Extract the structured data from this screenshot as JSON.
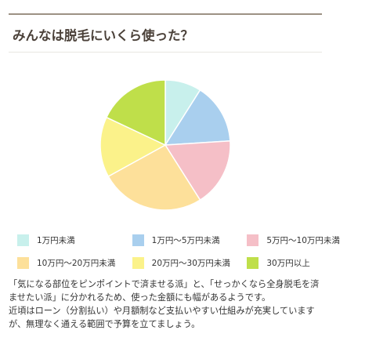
{
  "header": {
    "title": "みんなは脱毛にいくら使った？"
  },
  "chart_data": {
    "type": "pie",
    "title": "みんなは脱毛にいくら使った？",
    "slices": [
      {
        "label": "1万円未満",
        "value": 9,
        "color": "#c8f0ec"
      },
      {
        "label": "1万円〜5万円未満",
        "value": 15,
        "color": "#a9cfee"
      },
      {
        "label": "5万円〜10万円未満",
        "value": 17,
        "color": "#f5bfc7"
      },
      {
        "label": "10万円〜20万円未満",
        "value": 26,
        "color": "#fde09a"
      },
      {
        "label": "20万円〜30万円未満",
        "value": 15,
        "color": "#fbf28a"
      },
      {
        "label": "30万円以上",
        "value": 18,
        "color": "#bfdf4a"
      }
    ],
    "legend_position": "bottom"
  },
  "legend": {
    "items": [
      {
        "label": "1万円未満",
        "color": "#c8f0ec"
      },
      {
        "label": "1万円〜5万円未満",
        "color": "#a9cfee"
      },
      {
        "label": "5万円〜10万円未満",
        "color": "#f5bfc7"
      },
      {
        "label": "10万円〜20万円未満",
        "color": "#fde09a"
      },
      {
        "label": "20万円〜30万円未満",
        "color": "#fbf28a"
      },
      {
        "label": "30万円以上",
        "color": "#bfdf4a"
      }
    ]
  },
  "body": {
    "line1": "「気になる部位をピンポイントで済ませる派」と、「せっかくなら全身脱毛を済ませたい派」に分かれるため、使った金額にも幅があるようです。",
    "line2": "近頃はローン（分割払い）や月額制など支払いやすい仕組みが充実していますが、無理なく通える範囲で予算を立てましょう。"
  },
  "colors": {
    "rule": "#9c9184",
    "title": "#4a4038",
    "text": "#333333"
  }
}
